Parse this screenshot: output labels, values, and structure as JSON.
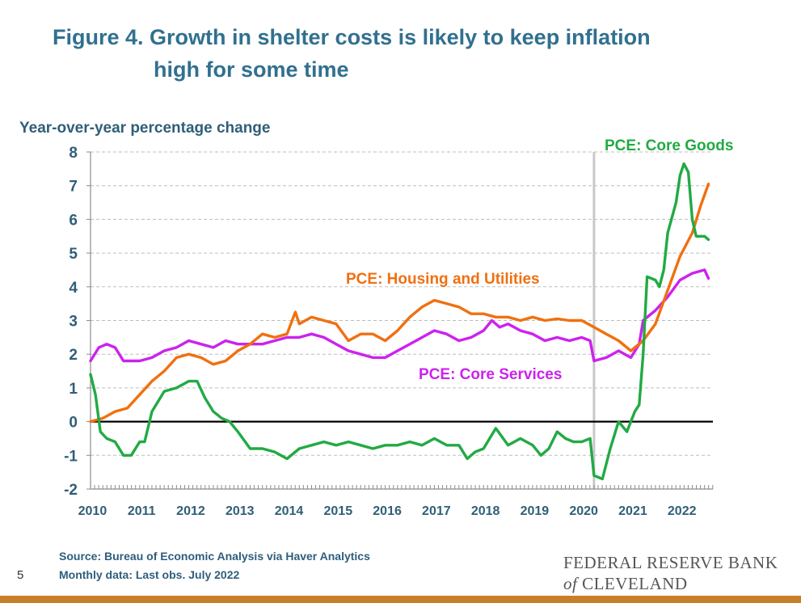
{
  "page": {
    "title_line1": "Figure 4. Growth in shelter costs is likely to keep inflation",
    "title_line2": "high for some time",
    "source_line1": "Source: Bureau of Economic Analysis via Haver Analytics",
    "source_line2": "Monthly data: Last obs. July 2022",
    "page_number": "5",
    "brand_line1": "FEDERAL RESERVE BANK",
    "brand_of": "of",
    "brand_line2": "CLEVELAND"
  },
  "colors": {
    "title": "#31708f",
    "axis_text": "#2f5f78",
    "housing": "#f07010",
    "services": "#cc22ee",
    "goods": "#22aa44",
    "marker_line": "#c8c8c8",
    "bottom_bar": "#c97f2a"
  },
  "chart_data": {
    "type": "line",
    "title": "",
    "xlabel": "",
    "ylabel": "Year-over-year percentage change",
    "xlim": [
      2010.0,
      2022.67
    ],
    "ylim": [
      -2,
      8
    ],
    "y_ticks": [
      "8",
      "7",
      "6",
      "5",
      "4",
      "3",
      "2",
      "1",
      "0",
      "-1",
      "-2"
    ],
    "x_ticks": [
      "2010",
      "2011",
      "2012",
      "2013",
      "2014",
      "2015",
      "2016",
      "2017",
      "2018",
      "2019",
      "2020",
      "2021",
      "2022"
    ],
    "grid": "horizontal dashed",
    "reference_line_x": 2020.25,
    "series": [
      {
        "name": "PCE: Housing and Utilities",
        "color": "#f07010",
        "points": [
          [
            2010.0,
            0.0
          ],
          [
            2010.25,
            0.1
          ],
          [
            2010.5,
            0.3
          ],
          [
            2010.75,
            0.4
          ],
          [
            2011.0,
            0.8
          ],
          [
            2011.25,
            1.2
          ],
          [
            2011.5,
            1.5
          ],
          [
            2011.75,
            1.9
          ],
          [
            2012.0,
            2.0
          ],
          [
            2012.25,
            1.9
          ],
          [
            2012.5,
            1.7
          ],
          [
            2012.75,
            1.8
          ],
          [
            2013.0,
            2.1
          ],
          [
            2013.25,
            2.3
          ],
          [
            2013.5,
            2.6
          ],
          [
            2013.75,
            2.5
          ],
          [
            2014.0,
            2.6
          ],
          [
            2014.17,
            3.25
          ],
          [
            2014.25,
            2.9
          ],
          [
            2014.5,
            3.1
          ],
          [
            2014.75,
            3.0
          ],
          [
            2015.0,
            2.9
          ],
          [
            2015.25,
            2.4
          ],
          [
            2015.5,
            2.6
          ],
          [
            2015.75,
            2.6
          ],
          [
            2016.0,
            2.4
          ],
          [
            2016.25,
            2.7
          ],
          [
            2016.5,
            3.1
          ],
          [
            2016.75,
            3.4
          ],
          [
            2017.0,
            3.6
          ],
          [
            2017.25,
            3.5
          ],
          [
            2017.5,
            3.4
          ],
          [
            2017.75,
            3.2
          ],
          [
            2018.0,
            3.2
          ],
          [
            2018.25,
            3.1
          ],
          [
            2018.5,
            3.1
          ],
          [
            2018.75,
            3.0
          ],
          [
            2019.0,
            3.1
          ],
          [
            2019.25,
            3.0
          ],
          [
            2019.5,
            3.05
          ],
          [
            2019.75,
            3.0
          ],
          [
            2020.0,
            3.0
          ],
          [
            2020.25,
            2.8
          ],
          [
            2020.5,
            2.6
          ],
          [
            2020.75,
            2.4
          ],
          [
            2021.0,
            2.1
          ],
          [
            2021.25,
            2.4
          ],
          [
            2021.5,
            2.9
          ],
          [
            2021.75,
            3.9
          ],
          [
            2022.0,
            4.9
          ],
          [
            2022.25,
            5.6
          ],
          [
            2022.42,
            6.4
          ],
          [
            2022.58,
            7.05
          ]
        ]
      },
      {
        "name": "PCE: Core Services",
        "color": "#cc22ee",
        "points": [
          [
            2010.0,
            1.8
          ],
          [
            2010.17,
            2.2
          ],
          [
            2010.33,
            2.3
          ],
          [
            2010.5,
            2.2
          ],
          [
            2010.67,
            1.8
          ],
          [
            2010.83,
            1.8
          ],
          [
            2011.0,
            1.8
          ],
          [
            2011.25,
            1.9
          ],
          [
            2011.5,
            2.1
          ],
          [
            2011.75,
            2.2
          ],
          [
            2012.0,
            2.4
          ],
          [
            2012.25,
            2.3
          ],
          [
            2012.5,
            2.2
          ],
          [
            2012.75,
            2.4
          ],
          [
            2013.0,
            2.3
          ],
          [
            2013.25,
            2.3
          ],
          [
            2013.5,
            2.3
          ],
          [
            2013.75,
            2.4
          ],
          [
            2014.0,
            2.5
          ],
          [
            2014.25,
            2.5
          ],
          [
            2014.5,
            2.6
          ],
          [
            2014.75,
            2.5
          ],
          [
            2015.0,
            2.3
          ],
          [
            2015.25,
            2.1
          ],
          [
            2015.5,
            2.0
          ],
          [
            2015.75,
            1.9
          ],
          [
            2016.0,
            1.9
          ],
          [
            2016.25,
            2.1
          ],
          [
            2016.5,
            2.3
          ],
          [
            2016.75,
            2.5
          ],
          [
            2017.0,
            2.7
          ],
          [
            2017.25,
            2.6
          ],
          [
            2017.5,
            2.4
          ],
          [
            2017.75,
            2.5
          ],
          [
            2018.0,
            2.7
          ],
          [
            2018.17,
            3.0
          ],
          [
            2018.33,
            2.8
          ],
          [
            2018.5,
            2.9
          ],
          [
            2018.75,
            2.7
          ],
          [
            2019.0,
            2.6
          ],
          [
            2019.25,
            2.4
          ],
          [
            2019.5,
            2.5
          ],
          [
            2019.75,
            2.4
          ],
          [
            2020.0,
            2.5
          ],
          [
            2020.17,
            2.4
          ],
          [
            2020.25,
            1.8
          ],
          [
            2020.5,
            1.9
          ],
          [
            2020.75,
            2.1
          ],
          [
            2021.0,
            1.9
          ],
          [
            2021.17,
            2.3
          ],
          [
            2021.25,
            3.0
          ],
          [
            2021.5,
            3.3
          ],
          [
            2021.75,
            3.7
          ],
          [
            2022.0,
            4.2
          ],
          [
            2022.25,
            4.4
          ],
          [
            2022.5,
            4.5
          ],
          [
            2022.58,
            4.25
          ]
        ]
      },
      {
        "name": "PCE: Core Goods",
        "color": "#22aa44",
        "points": [
          [
            2010.0,
            1.4
          ],
          [
            2010.1,
            0.8
          ],
          [
            2010.2,
            -0.3
          ],
          [
            2010.33,
            -0.5
          ],
          [
            2010.5,
            -0.6
          ],
          [
            2010.67,
            -1.0
          ],
          [
            2010.83,
            -1.0
          ],
          [
            2011.0,
            -0.6
          ],
          [
            2011.1,
            -0.6
          ],
          [
            2011.25,
            0.3
          ],
          [
            2011.5,
            0.9
          ],
          [
            2011.75,
            1.0
          ],
          [
            2012.0,
            1.2
          ],
          [
            2012.17,
            1.2
          ],
          [
            2012.33,
            0.7
          ],
          [
            2012.5,
            0.3
          ],
          [
            2012.67,
            0.1
          ],
          [
            2012.83,
            0.0
          ],
          [
            2013.0,
            -0.3
          ],
          [
            2013.25,
            -0.8
          ],
          [
            2013.5,
            -0.8
          ],
          [
            2013.75,
            -0.9
          ],
          [
            2014.0,
            -1.1
          ],
          [
            2014.25,
            -0.8
          ],
          [
            2014.5,
            -0.7
          ],
          [
            2014.75,
            -0.6
          ],
          [
            2015.0,
            -0.7
          ],
          [
            2015.25,
            -0.6
          ],
          [
            2015.5,
            -0.7
          ],
          [
            2015.75,
            -0.8
          ],
          [
            2016.0,
            -0.7
          ],
          [
            2016.25,
            -0.7
          ],
          [
            2016.5,
            -0.6
          ],
          [
            2016.75,
            -0.7
          ],
          [
            2017.0,
            -0.5
          ],
          [
            2017.25,
            -0.7
          ],
          [
            2017.5,
            -0.7
          ],
          [
            2017.67,
            -1.1
          ],
          [
            2017.83,
            -0.9
          ],
          [
            2018.0,
            -0.8
          ],
          [
            2018.25,
            -0.2
          ],
          [
            2018.5,
            -0.7
          ],
          [
            2018.75,
            -0.5
          ],
          [
            2019.0,
            -0.7
          ],
          [
            2019.17,
            -1.0
          ],
          [
            2019.33,
            -0.8
          ],
          [
            2019.5,
            -0.3
          ],
          [
            2019.67,
            -0.5
          ],
          [
            2019.83,
            -0.6
          ],
          [
            2020.0,
            -0.6
          ],
          [
            2020.17,
            -0.5
          ],
          [
            2020.25,
            -1.6
          ],
          [
            2020.42,
            -1.7
          ],
          [
            2020.58,
            -0.8
          ],
          [
            2020.75,
            0.0
          ],
          [
            2020.92,
            -0.3
          ],
          [
            2021.0,
            0.0
          ],
          [
            2021.08,
            0.3
          ],
          [
            2021.17,
            0.5
          ],
          [
            2021.25,
            2.0
          ],
          [
            2021.33,
            4.3
          ],
          [
            2021.5,
            4.2
          ],
          [
            2021.58,
            4.0
          ],
          [
            2021.67,
            4.5
          ],
          [
            2021.75,
            5.6
          ],
          [
            2021.92,
            6.5
          ],
          [
            2022.0,
            7.3
          ],
          [
            2022.08,
            7.65
          ],
          [
            2022.17,
            7.4
          ],
          [
            2022.25,
            6.0
          ],
          [
            2022.33,
            5.5
          ],
          [
            2022.5,
            5.5
          ],
          [
            2022.58,
            5.4
          ]
        ]
      }
    ]
  }
}
